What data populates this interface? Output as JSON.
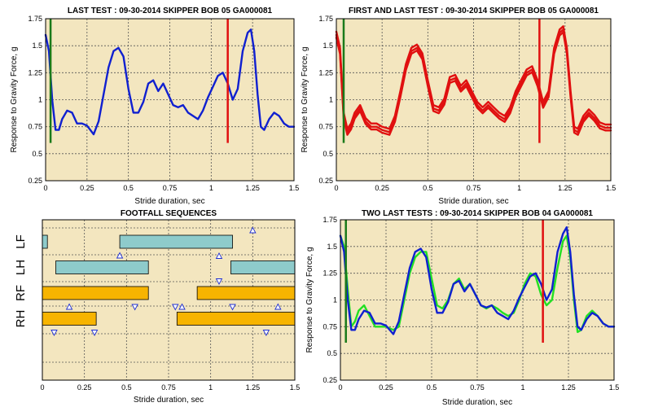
{
  "colors": {
    "plot_bg": "#f3e6bf",
    "grid": "#555555",
    "blue": "#1020d0",
    "red": "#e01010",
    "green": "#1a7a1a",
    "bright_green": "#22e022",
    "teal": "#8ecbcb",
    "orange": "#f7b400",
    "marker": "#2030d0"
  },
  "chart_data": [
    {
      "id": "last-test",
      "type": "line",
      "title": "LAST TEST : 09-30-2014 SKIPPER BOB 05 GA000081",
      "xlabel": "Stride duration, sec",
      "ylabel": "Response to Gravity Force, g",
      "xlim": [
        0,
        1.5
      ],
      "ylim": [
        0.25,
        1.75
      ],
      "xticks": [
        "0",
        "0.25",
        "0.5",
        "0.75",
        "1",
        "1.25",
        "1.5"
      ],
      "yticks": [
        "0.25",
        "0.5",
        "0.75",
        "1",
        "1.25",
        "1.5",
        "1.75"
      ],
      "grid": true,
      "vlines": [
        {
          "x": 0.03,
          "y0": 0.6,
          "y1": 1.75,
          "color": "green"
        },
        {
          "x": 1.1,
          "y0": 0.6,
          "y1": 1.75,
          "color": "red"
        }
      ],
      "series": [
        {
          "color": "blue",
          "offset": 0,
          "x": [
            0,
            0.02,
            0.04,
            0.06,
            0.08,
            0.1,
            0.13,
            0.16,
            0.19,
            0.22,
            0.25,
            0.29,
            0.32,
            0.35,
            0.38,
            0.41,
            0.44,
            0.47,
            0.5,
            0.53,
            0.56,
            0.59,
            0.62,
            0.65,
            0.68,
            0.71,
            0.74,
            0.77,
            0.8,
            0.83,
            0.86,
            0.89,
            0.92,
            0.95,
            0.98,
            1.01,
            1.04,
            1.07,
            1.1,
            1.13,
            1.16,
            1.19,
            1.22,
            1.24,
            1.26,
            1.28,
            1.3,
            1.32,
            1.35,
            1.38,
            1.41,
            1.44,
            1.47,
            1.5
          ],
          "y": [
            1.6,
            1.45,
            1.0,
            0.72,
            0.72,
            0.82,
            0.9,
            0.88,
            0.78,
            0.78,
            0.76,
            0.68,
            0.8,
            1.05,
            1.3,
            1.45,
            1.48,
            1.4,
            1.1,
            0.88,
            0.88,
            0.98,
            1.15,
            1.18,
            1.08,
            1.15,
            1.05,
            0.95,
            0.93,
            0.95,
            0.88,
            0.85,
            0.82,
            0.9,
            1.02,
            1.12,
            1.22,
            1.25,
            1.15,
            1.0,
            1.1,
            1.45,
            1.62,
            1.65,
            1.45,
            1.05,
            0.75,
            0.72,
            0.82,
            0.88,
            0.85,
            0.78,
            0.75,
            0.75
          ]
        }
      ]
    },
    {
      "id": "first-and-last-test",
      "type": "line",
      "title": "FIRST AND LAST TEST : 09-30-2014 SKIPPER BOB 05 GA000081",
      "xlabel": "Stride duration, sec",
      "ylabel": "Response to Gravity Force, g",
      "xlim": [
        0,
        1.5
      ],
      "ylim": [
        0.25,
        1.75
      ],
      "xticks": [
        "0",
        "0.25",
        "0.5",
        "0.75",
        "1",
        "1.25",
        "1.5"
      ],
      "yticks": [
        "0.25",
        "0.5",
        "0.75",
        "1",
        "1.25",
        "1.5",
        "1.75"
      ],
      "grid": true,
      "vlines": [
        {
          "x": 0.04,
          "y0": 0.6,
          "y1": 1.75,
          "color": "green"
        },
        {
          "x": 1.11,
          "y0": 0.6,
          "y1": 1.75,
          "color": "red"
        }
      ],
      "series": [
        {
          "color": "red",
          "offset": 0,
          "x": [
            0,
            0.02,
            0.04,
            0.06,
            0.08,
            0.1,
            0.13,
            0.16,
            0.19,
            0.22,
            0.25,
            0.29,
            0.32,
            0.35,
            0.38,
            0.41,
            0.44,
            0.47,
            0.5,
            0.53,
            0.56,
            0.59,
            0.62,
            0.65,
            0.68,
            0.71,
            0.74,
            0.77,
            0.8,
            0.83,
            0.86,
            0.89,
            0.92,
            0.95,
            0.98,
            1.01,
            1.04,
            1.07,
            1.1,
            1.13,
            1.16,
            1.19,
            1.22,
            1.24,
            1.26,
            1.28,
            1.3,
            1.32,
            1.35,
            1.38,
            1.41,
            1.44,
            1.47,
            1.5
          ],
          "y": [
            1.6,
            1.45,
            0.85,
            0.7,
            0.75,
            0.85,
            0.92,
            0.8,
            0.75,
            0.75,
            0.72,
            0.7,
            0.82,
            1.05,
            1.3,
            1.45,
            1.48,
            1.4,
            1.15,
            0.92,
            0.9,
            0.98,
            1.18,
            1.2,
            1.1,
            1.15,
            1.05,
            0.95,
            0.9,
            0.95,
            0.9,
            0.85,
            0.82,
            0.9,
            1.05,
            1.15,
            1.25,
            1.28,
            1.15,
            0.95,
            1.05,
            1.45,
            1.62,
            1.65,
            1.45,
            1.05,
            0.72,
            0.7,
            0.82,
            0.88,
            0.83,
            0.76,
            0.74,
            0.74
          ]
        },
        {
          "color": "red",
          "offset": 0.03,
          "x": [
            0,
            0.02,
            0.04,
            0.06,
            0.08,
            0.1,
            0.13,
            0.16,
            0.19,
            0.22,
            0.25,
            0.29,
            0.32,
            0.35,
            0.38,
            0.41,
            0.44,
            0.47,
            0.5,
            0.53,
            0.56,
            0.59,
            0.62,
            0.65,
            0.68,
            0.71,
            0.74,
            0.77,
            0.8,
            0.83,
            0.86,
            0.89,
            0.92,
            0.95,
            0.98,
            1.01,
            1.04,
            1.07,
            1.1,
            1.13,
            1.16,
            1.19,
            1.22,
            1.24,
            1.26,
            1.28,
            1.3,
            1.32,
            1.35,
            1.38,
            1.41,
            1.44,
            1.47,
            1.5
          ],
          "y": [
            1.6,
            1.45,
            0.85,
            0.7,
            0.75,
            0.85,
            0.92,
            0.8,
            0.75,
            0.75,
            0.72,
            0.7,
            0.82,
            1.05,
            1.3,
            1.45,
            1.48,
            1.4,
            1.15,
            0.92,
            0.9,
            0.98,
            1.18,
            1.2,
            1.1,
            1.15,
            1.05,
            0.95,
            0.9,
            0.95,
            0.9,
            0.85,
            0.82,
            0.9,
            1.05,
            1.15,
            1.25,
            1.28,
            1.15,
            0.95,
            1.05,
            1.45,
            1.62,
            1.65,
            1.45,
            1.05,
            0.72,
            0.7,
            0.82,
            0.88,
            0.83,
            0.76,
            0.74,
            0.74
          ]
        },
        {
          "color": "red",
          "offset": -0.025,
          "x": [
            0,
            0.02,
            0.04,
            0.06,
            0.08,
            0.1,
            0.13,
            0.16,
            0.19,
            0.22,
            0.25,
            0.29,
            0.32,
            0.35,
            0.38,
            0.41,
            0.44,
            0.47,
            0.5,
            0.53,
            0.56,
            0.59,
            0.62,
            0.65,
            0.68,
            0.71,
            0.74,
            0.77,
            0.8,
            0.83,
            0.86,
            0.89,
            0.92,
            0.95,
            0.98,
            1.01,
            1.04,
            1.07,
            1.1,
            1.13,
            1.16,
            1.19,
            1.22,
            1.24,
            1.26,
            1.28,
            1.3,
            1.32,
            1.35,
            1.38,
            1.41,
            1.44,
            1.47,
            1.5
          ],
          "y": [
            1.6,
            1.45,
            0.85,
            0.7,
            0.75,
            0.85,
            0.92,
            0.8,
            0.75,
            0.75,
            0.72,
            0.7,
            0.82,
            1.05,
            1.3,
            1.45,
            1.48,
            1.4,
            1.15,
            0.92,
            0.9,
            0.98,
            1.18,
            1.2,
            1.1,
            1.15,
            1.05,
            0.95,
            0.9,
            0.95,
            0.9,
            0.85,
            0.82,
            0.9,
            1.05,
            1.15,
            1.25,
            1.28,
            1.15,
            0.95,
            1.05,
            1.45,
            1.62,
            1.65,
            1.45,
            1.05,
            0.72,
            0.7,
            0.82,
            0.88,
            0.83,
            0.76,
            0.74,
            0.74
          ]
        }
      ]
    },
    {
      "id": "footfall-sequences",
      "type": "bar",
      "title": "FOOTFALL SEQUENCES",
      "xlabel": "Stride duration, sec",
      "xlim": [
        0,
        1.5
      ],
      "xticks": [
        "0",
        "0.25",
        "0.5",
        "0.75",
        "1",
        "1.25",
        "1.5"
      ],
      "grid": true,
      "rows": [
        "LF",
        "LH",
        "RF",
        "RH"
      ],
      "bars": [
        {
          "row": "LF",
          "start": 0.0,
          "end": 0.03,
          "color": "teal"
        },
        {
          "row": "LF",
          "start": 0.46,
          "end": 1.13,
          "color": "teal"
        },
        {
          "row": "LH",
          "start": 0.08,
          "end": 0.63,
          "color": "teal"
        },
        {
          "row": "LH",
          "start": 1.12,
          "end": 1.5,
          "color": "teal"
        },
        {
          "row": "RF",
          "start": 0.0,
          "end": 0.63,
          "color": "orange"
        },
        {
          "row": "RF",
          "start": 0.92,
          "end": 1.5,
          "color": "orange"
        },
        {
          "row": "RH",
          "start": 0.0,
          "end": 0.32,
          "color": "orange"
        },
        {
          "row": "RH",
          "start": 0.8,
          "end": 1.5,
          "color": "orange"
        }
      ],
      "markers": [
        {
          "x": 0.46,
          "row": "LF",
          "pos": "below",
          "dir": "up"
        },
        {
          "x": 1.25,
          "row": "LF",
          "pos": "above",
          "dir": "up"
        },
        {
          "x": 1.05,
          "row": "LH",
          "pos": "above",
          "dir": "up"
        },
        {
          "x": 1.05,
          "row": "LH",
          "pos": "below",
          "dir": "down"
        },
        {
          "x": 0.16,
          "row": "RF",
          "pos": "below",
          "dir": "up"
        },
        {
          "x": 0.55,
          "row": "RF",
          "pos": "below",
          "dir": "down"
        },
        {
          "x": 0.79,
          "row": "RF",
          "pos": "below",
          "dir": "down"
        },
        {
          "x": 0.83,
          "row": "RF",
          "pos": "below",
          "dir": "up"
        },
        {
          "x": 1.13,
          "row": "RF",
          "pos": "below",
          "dir": "down"
        },
        {
          "x": 1.4,
          "row": "RF",
          "pos": "below",
          "dir": "up"
        },
        {
          "x": 0.07,
          "row": "RH",
          "pos": "below",
          "dir": "down"
        },
        {
          "x": 0.31,
          "row": "RH",
          "pos": "below",
          "dir": "down"
        },
        {
          "x": 1.33,
          "row": "RH",
          "pos": "below",
          "dir": "down"
        }
      ]
    },
    {
      "id": "two-last-tests",
      "type": "line",
      "title": "TWO LAST TESTS : 09-30-2014 SKIPPER BOB 04 GA000081",
      "xlabel": "Stride duration, sec",
      "ylabel": "Response to Gravity Force, g",
      "xlim": [
        0,
        1.5
      ],
      "ylim": [
        0.25,
        1.75
      ],
      "xticks": [
        "0",
        "0.25",
        "0.5",
        "0.75",
        "1",
        "1.25",
        "1.5"
      ],
      "yticks": [
        "0.25",
        "0.5",
        "0.75",
        "1",
        "1.25",
        "1.5",
        "1.75"
      ],
      "grid": true,
      "vlines": [
        {
          "x": 0.03,
          "y0": 0.6,
          "y1": 1.75,
          "color": "green"
        },
        {
          "x": 1.11,
          "y0": 0.6,
          "y1": 1.75,
          "color": "red"
        }
      ],
      "series": [
        {
          "color": "bright_green",
          "offset": 0,
          "x": [
            0,
            0.02,
            0.04,
            0.06,
            0.08,
            0.1,
            0.13,
            0.16,
            0.19,
            0.22,
            0.25,
            0.29,
            0.32,
            0.35,
            0.38,
            0.41,
            0.44,
            0.47,
            0.5,
            0.53,
            0.56,
            0.59,
            0.62,
            0.65,
            0.68,
            0.71,
            0.74,
            0.77,
            0.8,
            0.83,
            0.86,
            0.89,
            0.92,
            0.95,
            0.98,
            1.01,
            1.04,
            1.07,
            1.1,
            1.13,
            1.16,
            1.19,
            1.22,
            1.24,
            1.26,
            1.28,
            1.3,
            1.32,
            1.35,
            1.38,
            1.41,
            1.44,
            1.47,
            1.5
          ],
          "y": [
            1.6,
            1.5,
            1.1,
            0.75,
            0.8,
            0.9,
            0.95,
            0.85,
            0.75,
            0.75,
            0.75,
            0.72,
            0.75,
            1.0,
            1.25,
            1.4,
            1.45,
            1.45,
            1.2,
            0.95,
            0.92,
            1.0,
            1.15,
            1.2,
            1.1,
            1.15,
            1.05,
            0.95,
            0.92,
            0.95,
            0.92,
            0.88,
            0.85,
            0.88,
            1.0,
            1.15,
            1.25,
            1.22,
            1.05,
            0.95,
            1.0,
            1.3,
            1.55,
            1.6,
            1.4,
            1.0,
            0.7,
            0.72,
            0.85,
            0.9,
            0.85,
            0.78,
            0.75,
            0.75
          ]
        },
        {
          "color": "blue",
          "offset": 0,
          "x": [
            0,
            0.02,
            0.04,
            0.06,
            0.08,
            0.1,
            0.13,
            0.16,
            0.19,
            0.22,
            0.25,
            0.29,
            0.32,
            0.35,
            0.38,
            0.41,
            0.44,
            0.47,
            0.5,
            0.53,
            0.56,
            0.59,
            0.62,
            0.65,
            0.68,
            0.71,
            0.74,
            0.77,
            0.8,
            0.83,
            0.86,
            0.89,
            0.92,
            0.95,
            0.98,
            1.01,
            1.04,
            1.07,
            1.1,
            1.13,
            1.16,
            1.19,
            1.22,
            1.24,
            1.26,
            1.28,
            1.3,
            1.32,
            1.35,
            1.38,
            1.41,
            1.44,
            1.47,
            1.5
          ],
          "y": [
            1.6,
            1.45,
            1.0,
            0.72,
            0.72,
            0.82,
            0.9,
            0.88,
            0.78,
            0.78,
            0.76,
            0.68,
            0.8,
            1.05,
            1.3,
            1.45,
            1.48,
            1.4,
            1.1,
            0.88,
            0.88,
            0.98,
            1.15,
            1.18,
            1.08,
            1.15,
            1.05,
            0.95,
            0.93,
            0.95,
            0.88,
            0.85,
            0.82,
            0.9,
            1.02,
            1.12,
            1.22,
            1.25,
            1.15,
            1.0,
            1.1,
            1.45,
            1.62,
            1.68,
            1.45,
            1.05,
            0.75,
            0.72,
            0.82,
            0.88,
            0.85,
            0.78,
            0.75,
            0.75
          ]
        }
      ]
    }
  ]
}
